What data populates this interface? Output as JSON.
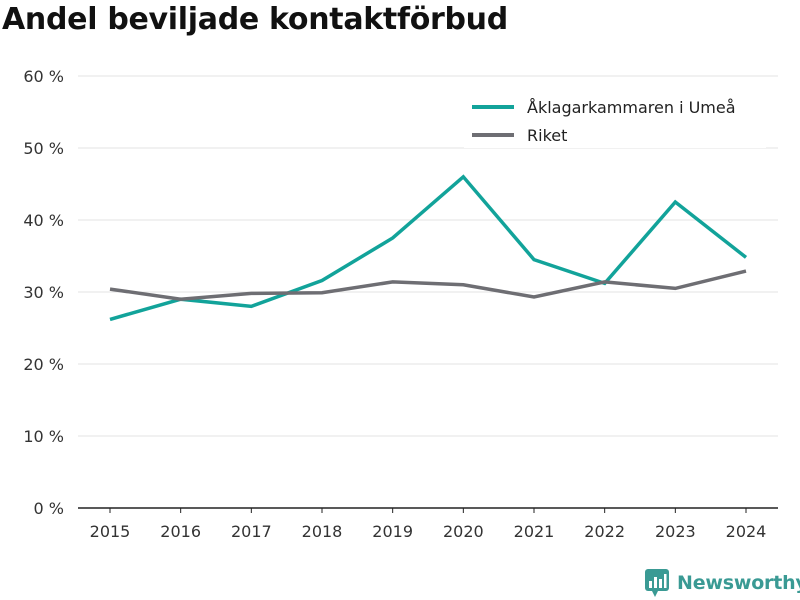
{
  "title": "Andel beviljade kontaktförbud",
  "brand": {
    "name": "Newsworthy",
    "icon": "newsworthy-logo-icon",
    "color": "#3a9a94"
  },
  "chart_data": {
    "type": "line",
    "categories": [
      "2015",
      "2016",
      "2017",
      "2018",
      "2019",
      "2020",
      "2021",
      "2022",
      "2023",
      "2024"
    ],
    "series": [
      {
        "name": "Åklagarkammaren i Umeå",
        "color": "#12a39a",
        "values": [
          26.2,
          29.0,
          28.0,
          31.6,
          37.5,
          46.0,
          34.5,
          31.2,
          42.5,
          34.8
        ]
      },
      {
        "name": "Riket",
        "color": "#6e6e73",
        "values": [
          30.4,
          29.0,
          29.8,
          29.9,
          31.4,
          31.0,
          29.3,
          31.4,
          30.5,
          32.9
        ]
      }
    ],
    "yticks": [
      0,
      10,
      20,
      30,
      40,
      50,
      60
    ],
    "ytick_labels": [
      "0 %",
      "10 %",
      "20 %",
      "30 %",
      "40 %",
      "50 %",
      "60 %"
    ],
    "ylim": [
      0,
      60
    ],
    "grid": true,
    "legend_position": "top-right"
  }
}
